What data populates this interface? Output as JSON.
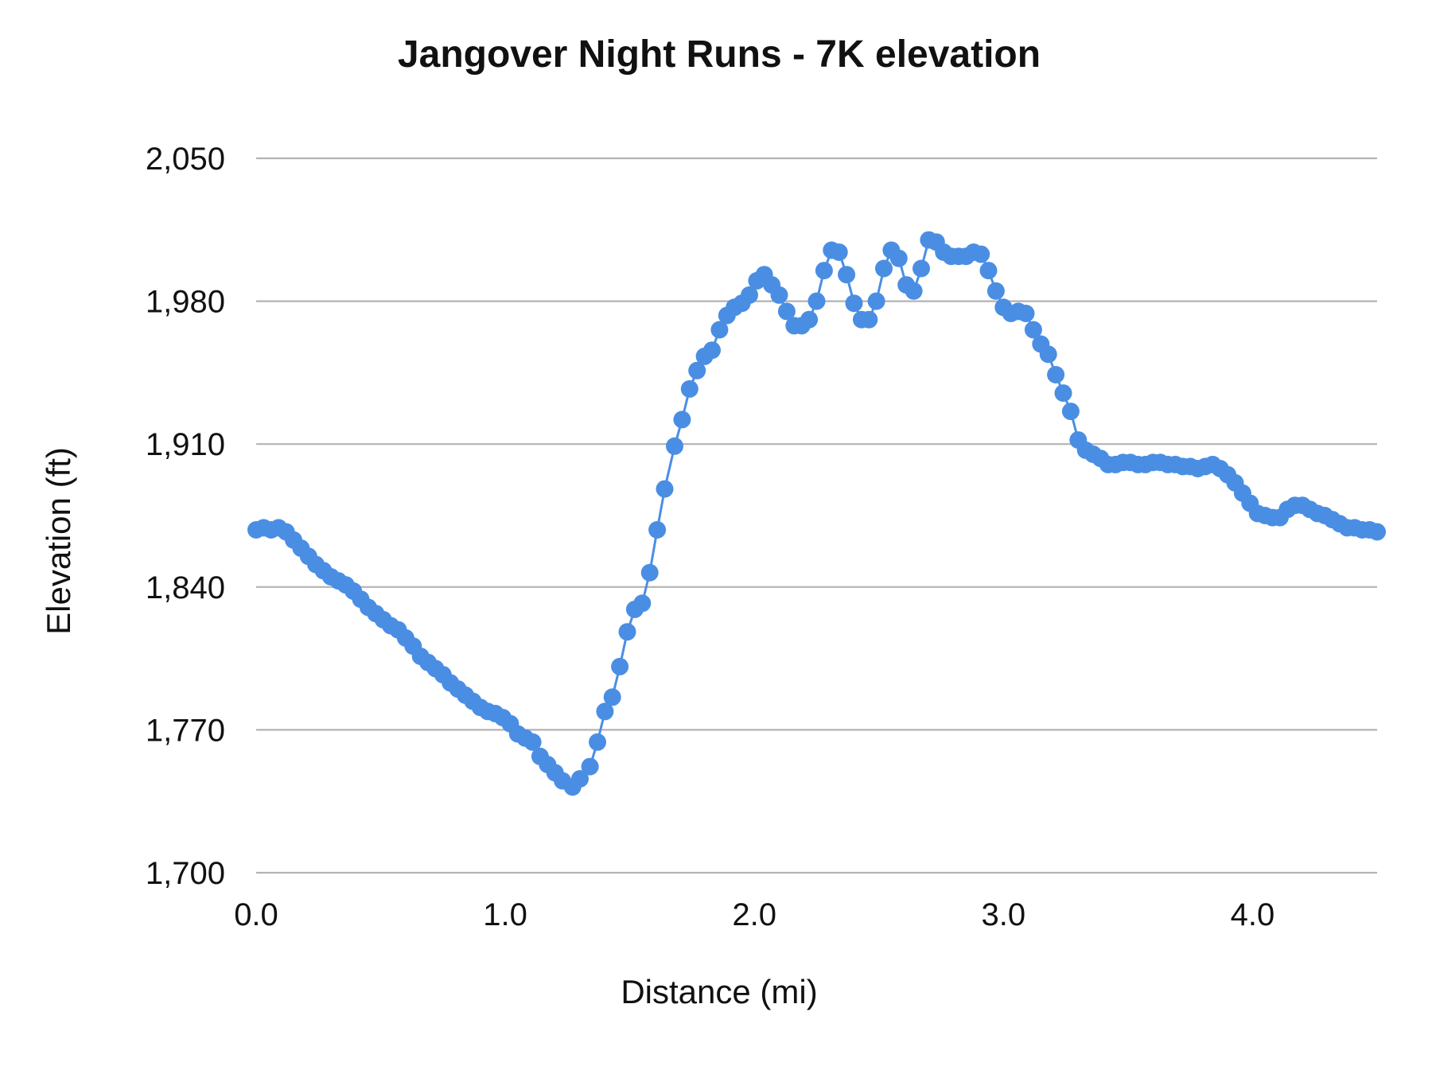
{
  "chart_data": {
    "type": "line",
    "title": "Jangover Night Runs - 7K elevation",
    "xlabel": "Distance (mi)",
    "ylabel": "Elevation (ft)",
    "xlim": [
      0,
      4.5
    ],
    "ylim": [
      1700,
      2050
    ],
    "x_ticks": [
      0,
      1,
      2,
      3,
      4
    ],
    "x_tick_labels": [
      "0.0",
      "1.0",
      "2.0",
      "3.0",
      "4.0"
    ],
    "y_ticks": [
      1700,
      1770,
      1840,
      1910,
      1980,
      2050
    ],
    "y_tick_labels": [
      "1,700",
      "1,770",
      "1,840",
      "1,910",
      "1,980",
      "2,050"
    ],
    "grid": true,
    "legend": "none",
    "markers": true,
    "series": [
      {
        "color": "#4a8ee4",
        "points": [
          [
            0.0,
            1868
          ],
          [
            0.03,
            1869
          ],
          [
            0.06,
            1868
          ],
          [
            0.09,
            1869
          ],
          [
            0.12,
            1867
          ],
          [
            0.15,
            1863
          ],
          [
            0.18,
            1859
          ],
          [
            0.21,
            1855
          ],
          [
            0.24,
            1851
          ],
          [
            0.27,
            1848
          ],
          [
            0.3,
            1845
          ],
          [
            0.33,
            1843
          ],
          [
            0.36,
            1841
          ],
          [
            0.39,
            1838
          ],
          [
            0.42,
            1834
          ],
          [
            0.45,
            1830
          ],
          [
            0.48,
            1827
          ],
          [
            0.51,
            1824
          ],
          [
            0.54,
            1821
          ],
          [
            0.57,
            1819
          ],
          [
            0.6,
            1815
          ],
          [
            0.63,
            1811
          ],
          [
            0.66,
            1806
          ],
          [
            0.69,
            1803
          ],
          [
            0.72,
            1800
          ],
          [
            0.75,
            1797
          ],
          [
            0.78,
            1793
          ],
          [
            0.81,
            1790
          ],
          [
            0.84,
            1787
          ],
          [
            0.87,
            1784
          ],
          [
            0.9,
            1781
          ],
          [
            0.93,
            1779
          ],
          [
            0.96,
            1778
          ],
          [
            0.99,
            1776
          ],
          [
            1.02,
            1773
          ],
          [
            1.05,
            1768
          ],
          [
            1.08,
            1766
          ],
          [
            1.11,
            1764
          ],
          [
            1.14,
            1757
          ],
          [
            1.17,
            1753
          ],
          [
            1.2,
            1749
          ],
          [
            1.23,
            1745
          ],
          [
            1.27,
            1742
          ],
          [
            1.3,
            1746
          ],
          [
            1.34,
            1752
          ],
          [
            1.37,
            1764
          ],
          [
            1.4,
            1779
          ],
          [
            1.43,
            1786
          ],
          [
            1.46,
            1801
          ],
          [
            1.49,
            1818
          ],
          [
            1.52,
            1829
          ],
          [
            1.55,
            1832
          ],
          [
            1.58,
            1847
          ],
          [
            1.61,
            1868
          ],
          [
            1.64,
            1888
          ],
          [
            1.68,
            1909
          ],
          [
            1.71,
            1922
          ],
          [
            1.74,
            1937
          ],
          [
            1.77,
            1946
          ],
          [
            1.8,
            1953
          ],
          [
            1.83,
            1956
          ],
          [
            1.86,
            1966
          ],
          [
            1.89,
            1973
          ],
          [
            1.92,
            1977
          ],
          [
            1.95,
            1979
          ],
          [
            1.98,
            1983
          ],
          [
            2.01,
            1990
          ],
          [
            2.04,
            1993
          ],
          [
            2.07,
            1988
          ],
          [
            2.1,
            1983
          ],
          [
            2.13,
            1975
          ],
          [
            2.16,
            1968
          ],
          [
            2.19,
            1968
          ],
          [
            2.22,
            1971
          ],
          [
            2.25,
            1980
          ],
          [
            2.28,
            1995
          ],
          [
            2.31,
            2005
          ],
          [
            2.34,
            2004
          ],
          [
            2.37,
            1993
          ],
          [
            2.4,
            1979
          ],
          [
            2.43,
            1971
          ],
          [
            2.46,
            1971
          ],
          [
            2.49,
            1980
          ],
          [
            2.52,
            1996
          ],
          [
            2.55,
            2005
          ],
          [
            2.58,
            2001
          ],
          [
            2.61,
            1988
          ],
          [
            2.64,
            1985
          ],
          [
            2.67,
            1996
          ],
          [
            2.7,
            2010
          ],
          [
            2.73,
            2009
          ],
          [
            2.76,
            2004
          ],
          [
            2.79,
            2002
          ],
          [
            2.82,
            2002
          ],
          [
            2.85,
            2002
          ],
          [
            2.88,
            2004
          ],
          [
            2.91,
            2003
          ],
          [
            2.94,
            1995
          ],
          [
            2.97,
            1985
          ],
          [
            3.0,
            1977
          ],
          [
            3.03,
            1974
          ],
          [
            3.06,
            1975
          ],
          [
            3.09,
            1974
          ],
          [
            3.12,
            1966
          ],
          [
            3.15,
            1959
          ],
          [
            3.18,
            1954
          ],
          [
            3.21,
            1944
          ],
          [
            3.24,
            1935
          ],
          [
            3.27,
            1926
          ],
          [
            3.3,
            1912
          ],
          [
            3.33,
            1907
          ],
          [
            3.36,
            1905
          ],
          [
            3.39,
            1903
          ],
          [
            3.42,
            1900
          ],
          [
            3.45,
            1900
          ],
          [
            3.48,
            1901
          ],
          [
            3.51,
            1901
          ],
          [
            3.54,
            1900
          ],
          [
            3.57,
            1900
          ],
          [
            3.6,
            1901
          ],
          [
            3.63,
            1901
          ],
          [
            3.66,
            1900
          ],
          [
            3.69,
            1900
          ],
          [
            3.72,
            1899
          ],
          [
            3.75,
            1899
          ],
          [
            3.78,
            1898
          ],
          [
            3.81,
            1899
          ],
          [
            3.84,
            1900
          ],
          [
            3.87,
            1898
          ],
          [
            3.9,
            1895
          ],
          [
            3.93,
            1891
          ],
          [
            3.96,
            1886
          ],
          [
            3.99,
            1881
          ],
          [
            4.02,
            1876
          ],
          [
            4.05,
            1875
          ],
          [
            4.08,
            1874
          ],
          [
            4.11,
            1874
          ],
          [
            4.14,
            1878
          ],
          [
            4.17,
            1880
          ],
          [
            4.2,
            1880
          ],
          [
            4.23,
            1878
          ],
          [
            4.26,
            1876
          ],
          [
            4.29,
            1875
          ],
          [
            4.32,
            1873
          ],
          [
            4.35,
            1871
          ],
          [
            4.38,
            1869
          ],
          [
            4.41,
            1869
          ],
          [
            4.44,
            1868
          ],
          [
            4.47,
            1868
          ],
          [
            4.5,
            1867
          ]
        ]
      }
    ]
  }
}
